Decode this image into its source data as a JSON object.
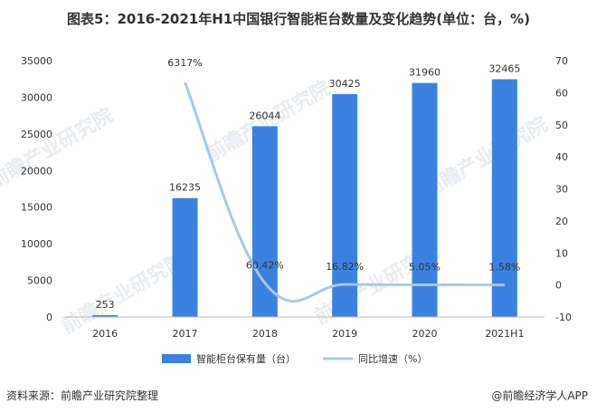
{
  "title": "图表5：2016-2021年H1中国银行智能柜台数量及变化趋势(单位：台，%)",
  "source_note": "资料来源：前瞻产业研究院整理",
  "brand_note": "@前瞻经济学人APP",
  "watermark_text": "前瞻产业研究院",
  "colors": {
    "bar": "#3b82e0",
    "line": "#a8c8ee",
    "axis": "#888888"
  },
  "chart_data": {
    "type": "bar",
    "title": "图表5：2016-2021年H1中国银行智能柜台数量及变化趋势(单位：台，%)",
    "categories": [
      "2016",
      "2017",
      "2018",
      "2019",
      "2020",
      "2021H1"
    ],
    "y_left": {
      "min": 0,
      "max": 35000,
      "ticks": [
        "0",
        "5000",
        "10000",
        "15000",
        "20000",
        "25000",
        "30000",
        "35000"
      ]
    },
    "y_right": {
      "min": -10,
      "max": 70,
      "ticks": [
        "-10",
        "0",
        "10",
        "20",
        "30",
        "40",
        "50",
        "60",
        "70"
      ]
    },
    "series": [
      {
        "name": "智能柜台保有量（台）",
        "type": "bar",
        "axis": "left",
        "values": [
          253,
          16235,
          26044,
          30425,
          31960,
          32465
        ],
        "labels": [
          "253",
          "16235",
          "26044",
          "30425",
          "31960",
          "32465"
        ]
      },
      {
        "name": "同比增速（%）",
        "type": "line",
        "axis": "right",
        "values": [
          null,
          63.17,
          0.6042,
          0.1682,
          0.0505,
          0.0158
        ],
        "labels": [
          "",
          "6317%",
          "60.42%",
          "16.82%",
          "5.05%",
          "1.58%"
        ]
      }
    ],
    "legend": "bottom",
    "grid": false
  }
}
